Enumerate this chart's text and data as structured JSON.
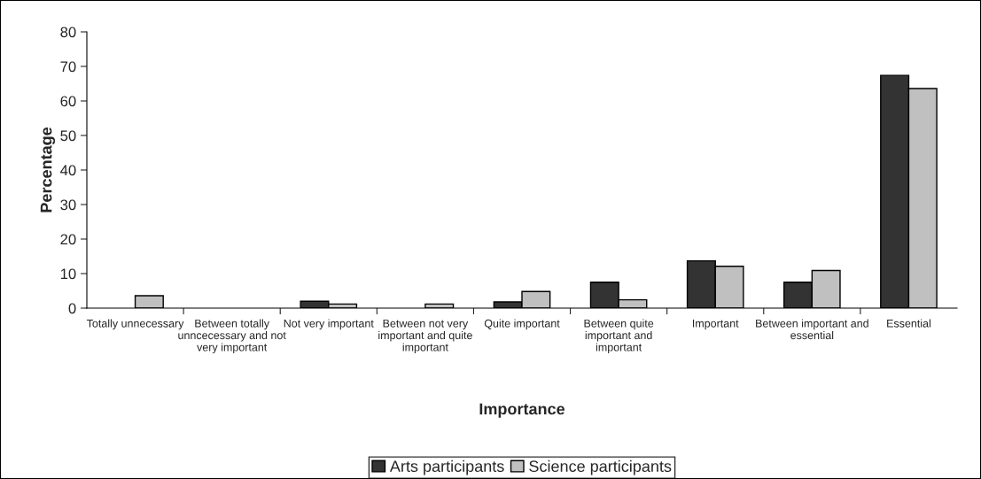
{
  "chart_data": {
    "type": "bar",
    "xlabel": "Importance",
    "ylabel": "Percentage",
    "categories": [
      "Totally unnecessary",
      "Between totally unncecessary and not very important",
      "Not very important",
      "Between not very important and quite important",
      "Quite important",
      "Between quite important and important",
      "Important",
      "Between important and essential",
      "Essential"
    ],
    "series": [
      {
        "name": "Arts participants",
        "color": "#333333",
        "values": [
          null,
          null,
          2.0,
          null,
          1.8,
          7.5,
          13.7,
          7.5,
          67.4
        ]
      },
      {
        "name": "Science participants",
        "color": "#c0c0c0",
        "values": [
          3.6,
          null,
          1.2,
          1.2,
          4.8,
          2.4,
          12.1,
          10.9,
          63.6
        ]
      }
    ],
    "ylim": [
      0,
      80
    ],
    "yticks": [
      0,
      10,
      20,
      30,
      40,
      50,
      60,
      70,
      80
    ],
    "grid": false,
    "legend": "bottom"
  }
}
